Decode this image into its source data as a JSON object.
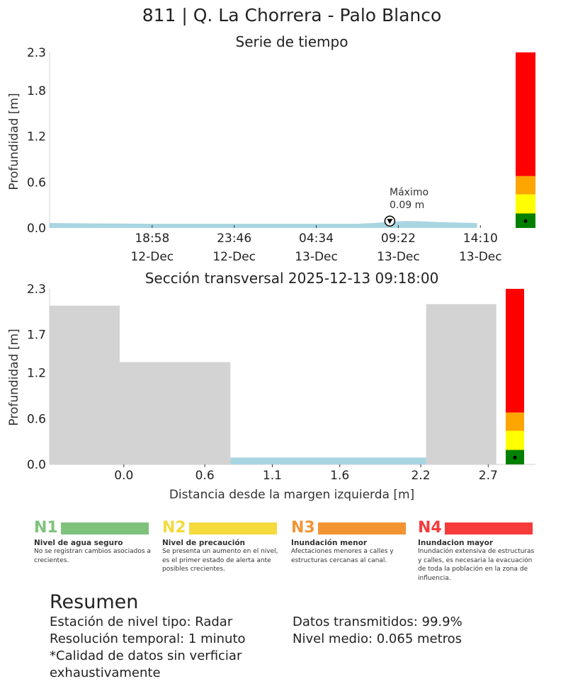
{
  "page_title": "811 | Q. La Chorrera - Palo Blanco",
  "chart_data": [
    {
      "type": "area",
      "title": "Serie de tiempo",
      "ylabel": "Profundidad [m]",
      "xlabel": "",
      "ylim": [
        0,
        2.3
      ],
      "yticks": [
        "0.0",
        "0.6",
        "1.2",
        "1.8",
        "2.3"
      ],
      "xticks": [
        {
          "time": "18:58",
          "date": "12-Dec"
        },
        {
          "time": "23:46",
          "date": "12-Dec"
        },
        {
          "time": "04:34",
          "date": "13-Dec"
        },
        {
          "time": "09:22",
          "date": "13-Dec"
        },
        {
          "time": "14:10",
          "date": "13-Dec"
        }
      ],
      "x_hours": [
        0,
        2,
        4,
        6,
        8,
        10,
        12,
        14,
        16,
        18,
        19,
        20,
        21,
        22,
        23,
        24,
        25
      ],
      "depth": [
        0.065,
        0.06,
        0.058,
        0.055,
        0.055,
        0.055,
        0.055,
        0.055,
        0.055,
        0.055,
        0.065,
        0.085,
        0.09,
        0.085,
        0.075,
        0.07,
        0.065
      ],
      "x_range_hours": [
        0,
        26.1
      ],
      "max_label": "Máximo",
      "max_value_text": "0.09 m",
      "max_value": 0.09,
      "max_x_hours": 19.9,
      "current_level": 0.09,
      "series_color": "#a8d5e2",
      "alert_bands": [
        {
          "from": 0.0,
          "to": 0.19,
          "color": "#008000"
        },
        {
          "from": 0.19,
          "to": 0.44,
          "color": "#ffff00"
        },
        {
          "from": 0.44,
          "to": 0.68,
          "color": "#ffa500"
        },
        {
          "from": 0.68,
          "to": 2.3,
          "color": "#ff0000"
        }
      ]
    },
    {
      "type": "area",
      "title": "Sección transversal 2025-12-13 09:18:00",
      "ylabel": "Profundidad [m]",
      "xlabel": "Distancia desde la margen izquierda [m]",
      "ylim": [
        0,
        2.3
      ],
      "xlim": [
        -0.55,
        3.05
      ],
      "yticks": [
        "0.0",
        "0.6",
        "1.2",
        "1.7",
        "2.3"
      ],
      "xticks": [
        "0.0",
        "0.6",
        "1.1",
        "1.6",
        "2.2",
        "2.7"
      ],
      "xtick_values": [
        0.0,
        0.6,
        1.1,
        1.6,
        2.2,
        2.7
      ],
      "profile": [
        {
          "x0": -0.55,
          "x1": -0.03,
          "bank_height": 2.08
        },
        {
          "x0": -0.03,
          "x1": 0.79,
          "bank_height": 1.34
        },
        {
          "x0": 2.24,
          "x1": 2.76,
          "bank_height": 2.1
        }
      ],
      "water": {
        "x0": 0.79,
        "x1": 2.24,
        "level": 0.09
      },
      "bank_color": "#d3d3d3",
      "water_color": "#a8d5e2",
      "current_level": 0.09,
      "alert_bands": [
        {
          "from": 0.0,
          "to": 0.19,
          "color": "#008000"
        },
        {
          "from": 0.19,
          "to": 0.44,
          "color": "#ffff00"
        },
        {
          "from": 0.44,
          "to": 0.68,
          "color": "#ffa500"
        },
        {
          "from": 0.68,
          "to": 2.3,
          "color": "#ff0000"
        }
      ]
    }
  ],
  "legend": [
    {
      "code": "N1",
      "color": "#7fc27c",
      "title": "Nivel de agua seguro",
      "desc": "No se registran cambios asociados a crecientes."
    },
    {
      "code": "N2",
      "color": "#f5da3c",
      "title": "Nivel de precaución",
      "desc": "Se presenta un aumento en el nivel, es el primer estado de alerta ante posibles crecientes."
    },
    {
      "code": "N3",
      "color": "#f39433",
      "title": "Inundación menor",
      "desc": "Afectaciones menores a calles y estructuras cercanas al canal."
    },
    {
      "code": "N4",
      "color": "#f73b3b",
      "title": "Inundacion mayor",
      "desc": "Inundación extensiva de estructuras y calles, es necesaria la evacuación de toda la población en la zona de influencia."
    }
  ],
  "summary": {
    "title": "Resumen",
    "left": [
      "Estación de nivel tipo: Radar",
      "Resolución temporal: 1 minuto",
      "*Calidad de datos sin verficiar exhaustivamente"
    ],
    "right": [
      "Datos transmitidos: 99.9%",
      "Nivel medio: 0.065 metros"
    ]
  }
}
